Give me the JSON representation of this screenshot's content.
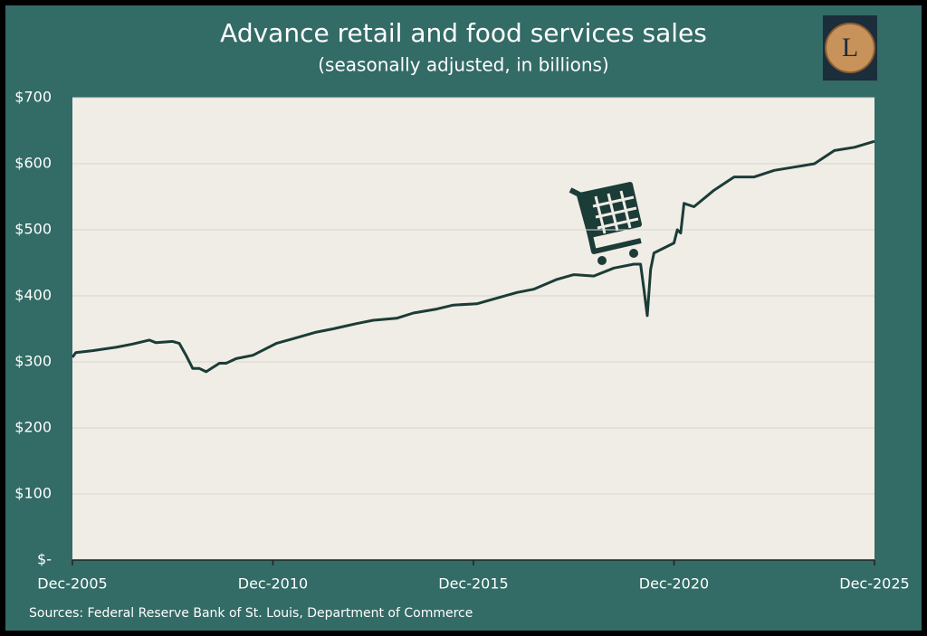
{
  "logo": "L",
  "chart_data": {
    "type": "line",
    "title": "Advance retail and food services sales",
    "subtitle": "(seasonally adjusted, in billions)",
    "source": "Sources: Federal Reserve Bank of St. Louis, Department of Commerce",
    "x": [
      "2005-12",
      "2006-01",
      "2006-06",
      "2007-01",
      "2007-06",
      "2007-11",
      "2008-01",
      "2008-06",
      "2008-08",
      "2008-10",
      "2008-12",
      "2009-02",
      "2009-04",
      "2009-08",
      "2009-10",
      "2010-01",
      "2010-06",
      "2011-01",
      "2011-06",
      "2012-01",
      "2012-06",
      "2013-01",
      "2013-06",
      "2014-01",
      "2014-06",
      "2015-01",
      "2015-06",
      "2016-01",
      "2016-06",
      "2017-01",
      "2017-06",
      "2018-01",
      "2018-06",
      "2018-12",
      "2019-06",
      "2019-12",
      "2020-02",
      "2020-03",
      "2020-04",
      "2020-05",
      "2020-06",
      "2020-12",
      "2021-01",
      "2021-02",
      "2021-03",
      "2021-06",
      "2021-12",
      "2022-06",
      "2022-12",
      "2023-06",
      "2023-12",
      "2024-06",
      "2024-12",
      "2025-06",
      "2025-12"
    ],
    "series": [
      {
        "name": "Advance retail and food services sales",
        "color": "#1b3c37",
        "values": [
          307,
          314,
          317,
          322,
          327,
          333,
          329,
          331,
          328,
          310,
          290,
          290,
          285,
          298,
          298,
          305,
          310,
          328,
          335,
          345,
          350,
          358,
          363,
          366,
          374,
          380,
          386,
          388,
          395,
          405,
          410,
          425,
          432,
          430,
          442,
          448,
          448,
          410,
          370,
          440,
          465,
          480,
          500,
          495,
          540,
          535,
          560,
          580,
          580,
          590,
          595,
          600,
          620,
          625,
          634
        ]
      }
    ],
    "xlim": [
      "2005-12",
      "2025-12"
    ],
    "xticks": [
      {
        "value": "2005-12",
        "label": "Dec-2005"
      },
      {
        "value": "2010-12",
        "label": "Dec-2010"
      },
      {
        "value": "2015-12",
        "label": "Dec-2015"
      },
      {
        "value": "2020-12",
        "label": "Dec-2020"
      },
      {
        "value": "2025-12",
        "label": "Dec-2025"
      }
    ],
    "ylim": [
      0,
      700
    ],
    "yticks": [
      {
        "value": 0,
        "label": "$-"
      },
      {
        "value": 100,
        "label": "$100"
      },
      {
        "value": 200,
        "label": "$200"
      },
      {
        "value": 300,
        "label": "$300"
      },
      {
        "value": 400,
        "label": "$400"
      },
      {
        "value": 500,
        "label": "$500"
      },
      {
        "value": 600,
        "label": "$600"
      },
      {
        "value": 700,
        "label": "$700"
      }
    ],
    "grid": true
  }
}
